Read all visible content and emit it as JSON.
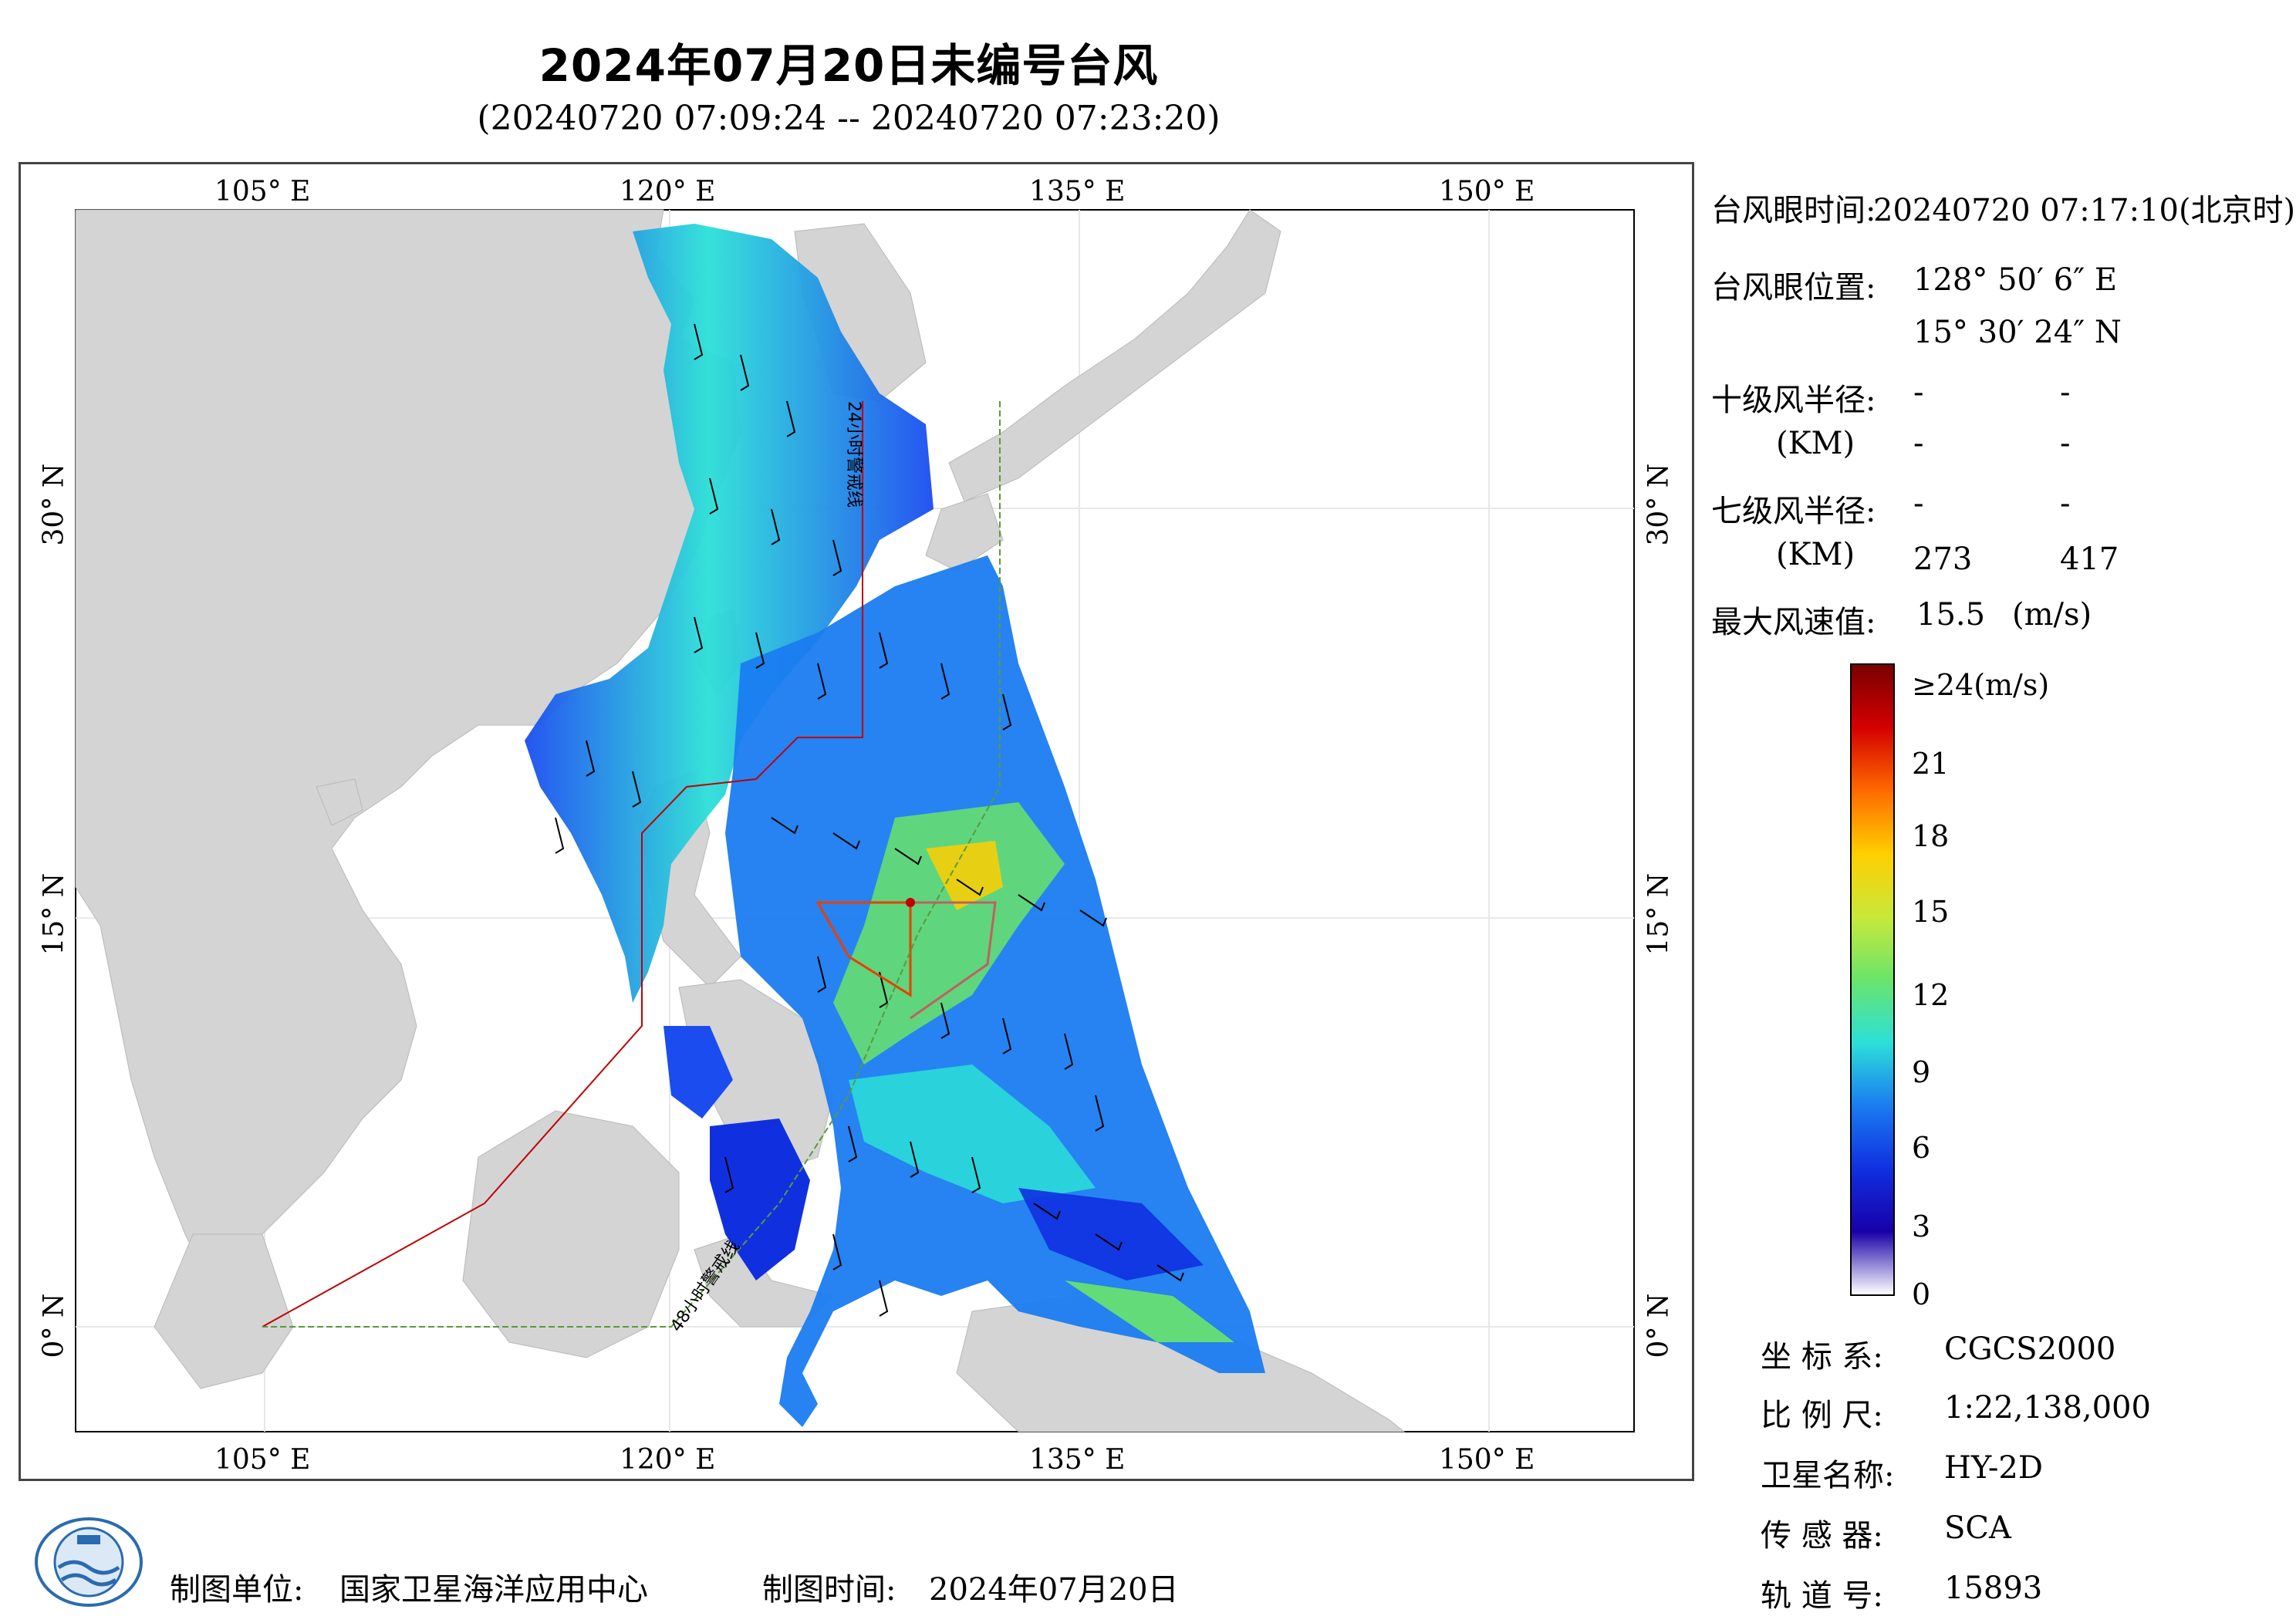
{
  "title": "2024年07月20日未编号台风",
  "subtitle": "(20240720 07:09:24 -- 20240720 07:23:20)",
  "map": {
    "lon_labels": [
      "105° E",
      "120° E",
      "135° E",
      "150° E"
    ],
    "lat_labels": [
      "30° N",
      "15° N",
      "0° N"
    ],
    "warning_24h_label": "24小时警戒线",
    "warning_48h_label": "48小时警戒线",
    "colors": {
      "land": "#d4d4d4",
      "sea": "#ffffff",
      "warning24": "#c00000",
      "warning48": "#5a9a3a"
    }
  },
  "info": {
    "eye_time_label": "台风眼时间:",
    "eye_time_value": "20240720 07:17:10(北京时)",
    "eye_pos_label": "台风眼位置:",
    "eye_lon": "128° 50′ 6″ E",
    "eye_lat": "15° 30′ 24″ N",
    "r10_label": "十级风半径:",
    "r10_unit": "(KM)",
    "r10_values": [
      "-",
      "-",
      "-",
      "-"
    ],
    "r7_label": "七级风半径:",
    "r7_unit": "(KM)",
    "r7_values": [
      "-",
      "-",
      "273",
      "417"
    ],
    "max_wind_label": "最大风速值:",
    "max_wind_value": "15.5",
    "max_wind_unit": "(m/s)"
  },
  "colorbar": {
    "labels": [
      "≥24(m/s)",
      "21",
      "18",
      "15",
      "12",
      "9",
      "6",
      "3",
      "0"
    ],
    "stops": [
      "#7a0000",
      "#d40000",
      "#ff6a00",
      "#ffcf00",
      "#c8e83a",
      "#6ae46a",
      "#2ce0d8",
      "#1a7cf0",
      "#1030e0",
      "#1800a8",
      "#ffffff"
    ]
  },
  "meta": {
    "coord_label": "坐 标 系:",
    "coord_value": "CGCS2000",
    "scale_label": "比 例 尺:",
    "scale_value": "1:22,138,000",
    "satellite_label": "卫星名称:",
    "satellite_value": "HY-2D",
    "sensor_label": "传 感 器:",
    "sensor_value": "SCA",
    "orbit_label": "轨 道 号:",
    "orbit_value": "15893"
  },
  "footer": {
    "org_label": "制图单位:",
    "org_value": "国家卫星海洋应用中心",
    "time_label": "制图时间:",
    "time_value": "2024年07月20日"
  }
}
